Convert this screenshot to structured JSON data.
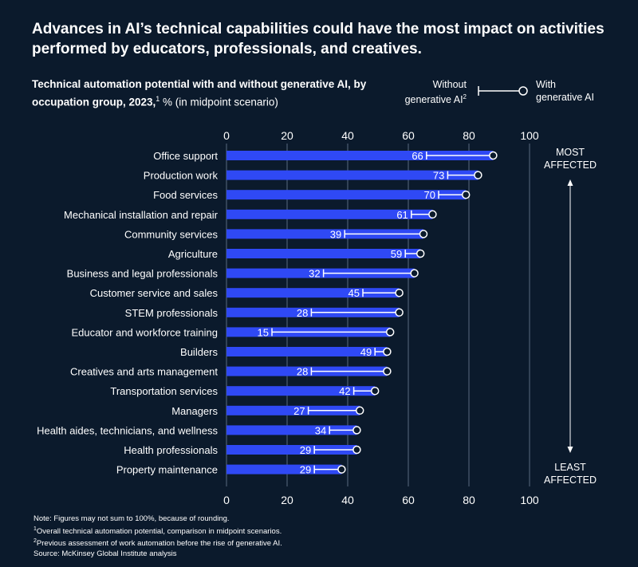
{
  "headline": "Advances in AI’s technical capabilities could have the most impact on activities performed by educators, professionals, and creatives.",
  "subtitle": {
    "bold": "Technical automation potential with and without generative AI, by occupation group, 2023,",
    "sup": "1",
    "rest": " % (in midpoint scenario)"
  },
  "legend": {
    "without_line1": "Without",
    "without_line2": "generative AI",
    "without_sup": "2",
    "with_line1": "With",
    "with_line2": "generative AI"
  },
  "annotations": {
    "most_line1": "MOST",
    "most_line2": "AFFECTED",
    "least_line1": "LEAST",
    "least_line2": "AFFECTED"
  },
  "colors": {
    "background": "#0b1a2c",
    "bar": "#2f49f5",
    "text": "#ffffff",
    "grid": "#5a6a80"
  },
  "chart_data": {
    "type": "bar",
    "orientation": "horizontal",
    "xlim": [
      0,
      100
    ],
    "xticks": [
      0,
      20,
      40,
      60,
      80,
      100
    ],
    "grid": true,
    "categories": [
      "Office support",
      "Production work",
      "Food services",
      "Mechanical installation and repair",
      "Community services",
      "Agriculture",
      "Business and legal professionals",
      "Customer service and sales",
      "STEM professionals",
      "Educator and workforce training",
      "Builders",
      "Creatives and arts management",
      "Transportation services",
      "Managers",
      "Health aides, technicians, and wellness",
      "Health professionals",
      "Property maintenance"
    ],
    "series": [
      {
        "name": "Without generative AI",
        "values": [
          66,
          73,
          70,
          61,
          39,
          59,
          32,
          45,
          28,
          15,
          49,
          28,
          42,
          27,
          34,
          29,
          29
        ]
      },
      {
        "name": "With generative AI",
        "values": [
          88,
          83,
          79,
          68,
          65,
          64,
          62,
          57,
          57,
          54,
          53,
          53,
          49,
          44,
          43,
          43,
          38
        ]
      }
    ]
  },
  "notes": {
    "note": "Note: Figures may not sum to 100%, because of rounding.",
    "fn1_sup": "1",
    "fn1": "Overall technical automation potential, comparison in midpoint scenarios.",
    "fn2_sup": "2",
    "fn2": "Previous assessment of work automation before the rise of generative AI.",
    "source": "Source: McKinsey Global Institute analysis"
  }
}
